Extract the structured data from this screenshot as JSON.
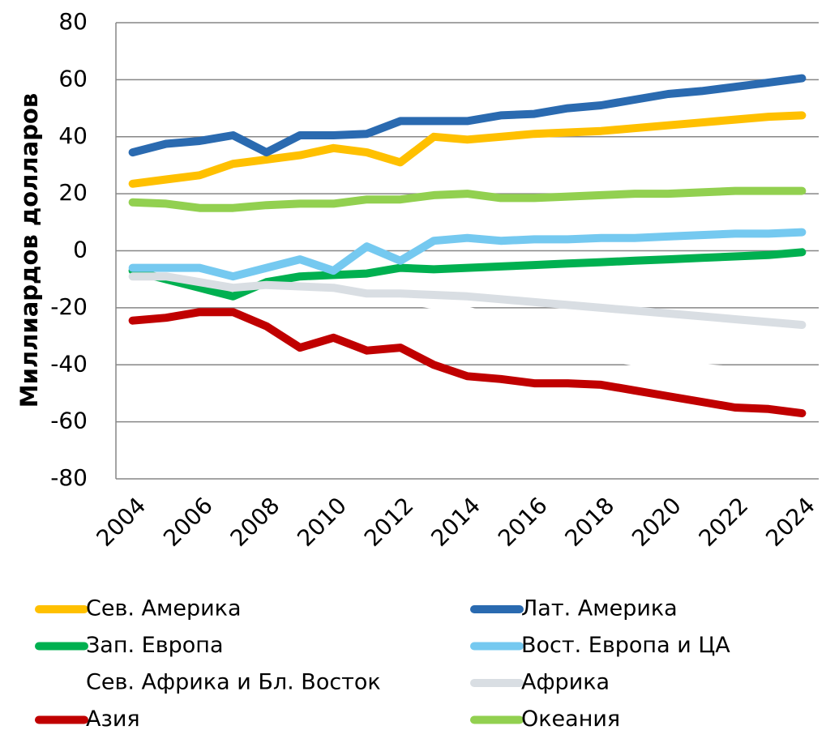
{
  "chart_data": {
    "type": "line",
    "ylabel": "Миллиардов  долларов",
    "categories": [
      "2004",
      null,
      "2006",
      null,
      "2008",
      null,
      "2010",
      null,
      "2012",
      null,
      "2014",
      null,
      "2016",
      null,
      "2018",
      null,
      "2020",
      null,
      "2022",
      null,
      "2024"
    ],
    "ylim": [
      -80,
      80
    ],
    "yticks": [
      -80,
      -60,
      -40,
      -20,
      0,
      20,
      40,
      60,
      80
    ],
    "grid": true,
    "series": [
      {
        "name": "Сев. Америка",
        "color": "#ffc000",
        "values": [
          23.5,
          25,
          26.5,
          30.5,
          32,
          33.5,
          36,
          34.5,
          31,
          40,
          39,
          40,
          41,
          41.5,
          42,
          43,
          44,
          45,
          46,
          47,
          47.5
        ]
      },
      {
        "name": "Лат. Америка",
        "color": "#2a6ab0",
        "values": [
          34.5,
          37.5,
          38.5,
          40.5,
          34.5,
          40.5,
          40.5,
          41,
          45.5,
          45.5,
          45.5,
          47.5,
          48,
          50,
          51,
          53,
          55,
          56,
          57.5,
          59,
          60.5
        ]
      },
      {
        "name": "Зап. Европа",
        "color": "#00b050",
        "values": [
          -7,
          -10,
          -13,
          -16,
          -11,
          -9,
          -8.5,
          -8,
          -6,
          -6.5,
          -6,
          -5.5,
          -5,
          -4.5,
          -4,
          -3.5,
          -3,
          -2.5,
          -2,
          -1.5,
          -0.5
        ]
      },
      {
        "name": "Вост. Европа и ЦА",
        "color": "#75c9f0",
        "values": [
          -6,
          -6,
          -6,
          -9,
          -6,
          -3,
          -7,
          1.5,
          -3.5,
          3.5,
          4.5,
          3.5,
          4,
          4,
          4.5,
          4.5,
          5,
          5.5,
          6,
          6,
          6.5
        ]
      },
      {
        "name": "Сев. Африка и Бл. Восток",
        "color": "#ffffff",
        "values": [
          -9,
          -9.5,
          -11,
          -12.5,
          -12,
          -13,
          -14,
          -16,
          -17,
          -19,
          -21,
          -24,
          -27,
          -32,
          -37,
          -39,
          -40,
          -41,
          -42,
          -43,
          -44
        ]
      },
      {
        "name": "Африка",
        "color": "#d9dee3",
        "values": [
          -9,
          -9,
          -11,
          -13,
          -12,
          -12.5,
          -13,
          -15,
          -15,
          -15.5,
          -16,
          -17,
          -18,
          -19,
          -20,
          -21,
          -22,
          -23,
          -24,
          -25,
          -26
        ]
      },
      {
        "name": "Азия",
        "color": "#c00000",
        "values": [
          -24.5,
          -23.5,
          -21.5,
          -21.5,
          -26.5,
          -34,
          -30.5,
          -35,
          -34,
          -40,
          -44,
          -45,
          -46.5,
          -46.5,
          -47,
          -49,
          -51,
          -53,
          -55,
          -55.5,
          -57
        ]
      },
      {
        "name": "Океания",
        "color": "#92d050",
        "values": [
          17,
          16.5,
          15,
          15,
          16,
          16.5,
          16.5,
          18,
          18,
          19.5,
          20,
          18.5,
          18.5,
          19,
          19.5,
          20,
          20,
          20.5,
          21,
          21,
          21
        ]
      }
    ]
  }
}
